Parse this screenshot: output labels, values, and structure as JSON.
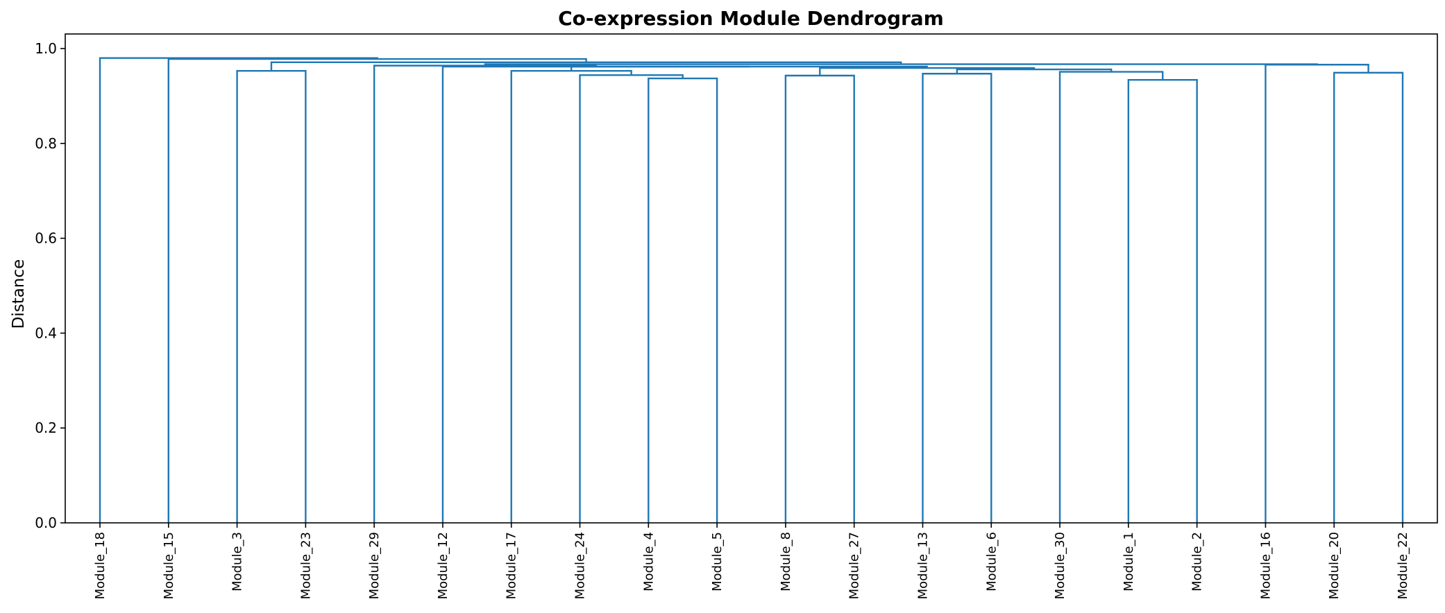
{
  "chart_data": {
    "type": "dendrogram",
    "title": "Co-expression Module Dendrogram",
    "xlabel": "",
    "ylabel": "Distance",
    "ylim": [
      0,
      1.03
    ],
    "yticks": [
      "0.0",
      "0.2",
      "0.4",
      "0.6",
      "0.8",
      "1.0"
    ],
    "line_color": "#1f77b4",
    "leaves": [
      "Module_18",
      "Module_15",
      "Module_3",
      "Module_23",
      "Module_29",
      "Module_12",
      "Module_17",
      "Module_24",
      "Module_4",
      "Module_5",
      "Module_8",
      "Module_27",
      "Module_13",
      "Module_6",
      "Module_30",
      "Module_1",
      "Module_2",
      "Module_16",
      "Module_20",
      "Module_22"
    ],
    "merges": [
      {
        "left": "Module_4",
        "right": "Module_5",
        "height": 0.937
      },
      {
        "left": "Module_1",
        "right": "Module_2",
        "height": 0.934
      },
      {
        "left": "Module_24",
        "right": "[Module_4,Module_5]",
        "height": 0.944
      },
      {
        "left": "Module_8",
        "right": "Module_27",
        "height": 0.943
      },
      {
        "left": "Module_13",
        "right": "Module_6",
        "height": 0.947
      },
      {
        "left": "Module_20",
        "right": "Module_22",
        "height": 0.949
      },
      {
        "left": "Module_30",
        "right": "[Module_1,Module_2]",
        "height": 0.951
      },
      {
        "left": "Module_3",
        "right": "Module_23",
        "height": 0.953
      },
      {
        "left": "Module_17",
        "right": "[Module_24,Module_4,Module_5]",
        "height": 0.953
      },
      {
        "left": "[Module_13,Module_6]",
        "right": "[Module_30,Module_1,Module_2]",
        "height": 0.956
      },
      {
        "left": "[Module_8,Module_27]",
        "right": "[Module_13,Module_6,Module_30,Module_1,Module_2]",
        "height": 0.959
      },
      {
        "left": "[Module_17,Module_24,Module_4,Module_5]",
        "right": "[Module_8,Module_27,Module_13,Module_6,Module_30,Module_1,Module_2]",
        "height": 0.962
      },
      {
        "left": "Module_12",
        "right": "[Module_17 ... Module_2]",
        "height": 0.962
      },
      {
        "left": "Module_29",
        "right": "[Module_12 ... Module_2]",
        "height": 0.964
      },
      {
        "left": "Module_16",
        "right": "[Module_20,Module_22]",
        "height": 0.966
      },
      {
        "left": "[Module_29 ... Module_2]",
        "right": "[Module_16,Module_20,Module_22]",
        "height": 0.967
      },
      {
        "left": "[Module_3,Module_23]",
        "right": "[Module_29 ... Module_22]",
        "height": 0.971
      },
      {
        "left": "Module_15",
        "right": "[Module_3 ... Module_22]",
        "height": 0.978
      },
      {
        "left": "Module_18",
        "right": "[Module_15 ... Module_22]",
        "height": 0.98
      }
    ],
    "grid": false,
    "legend": "none"
  }
}
